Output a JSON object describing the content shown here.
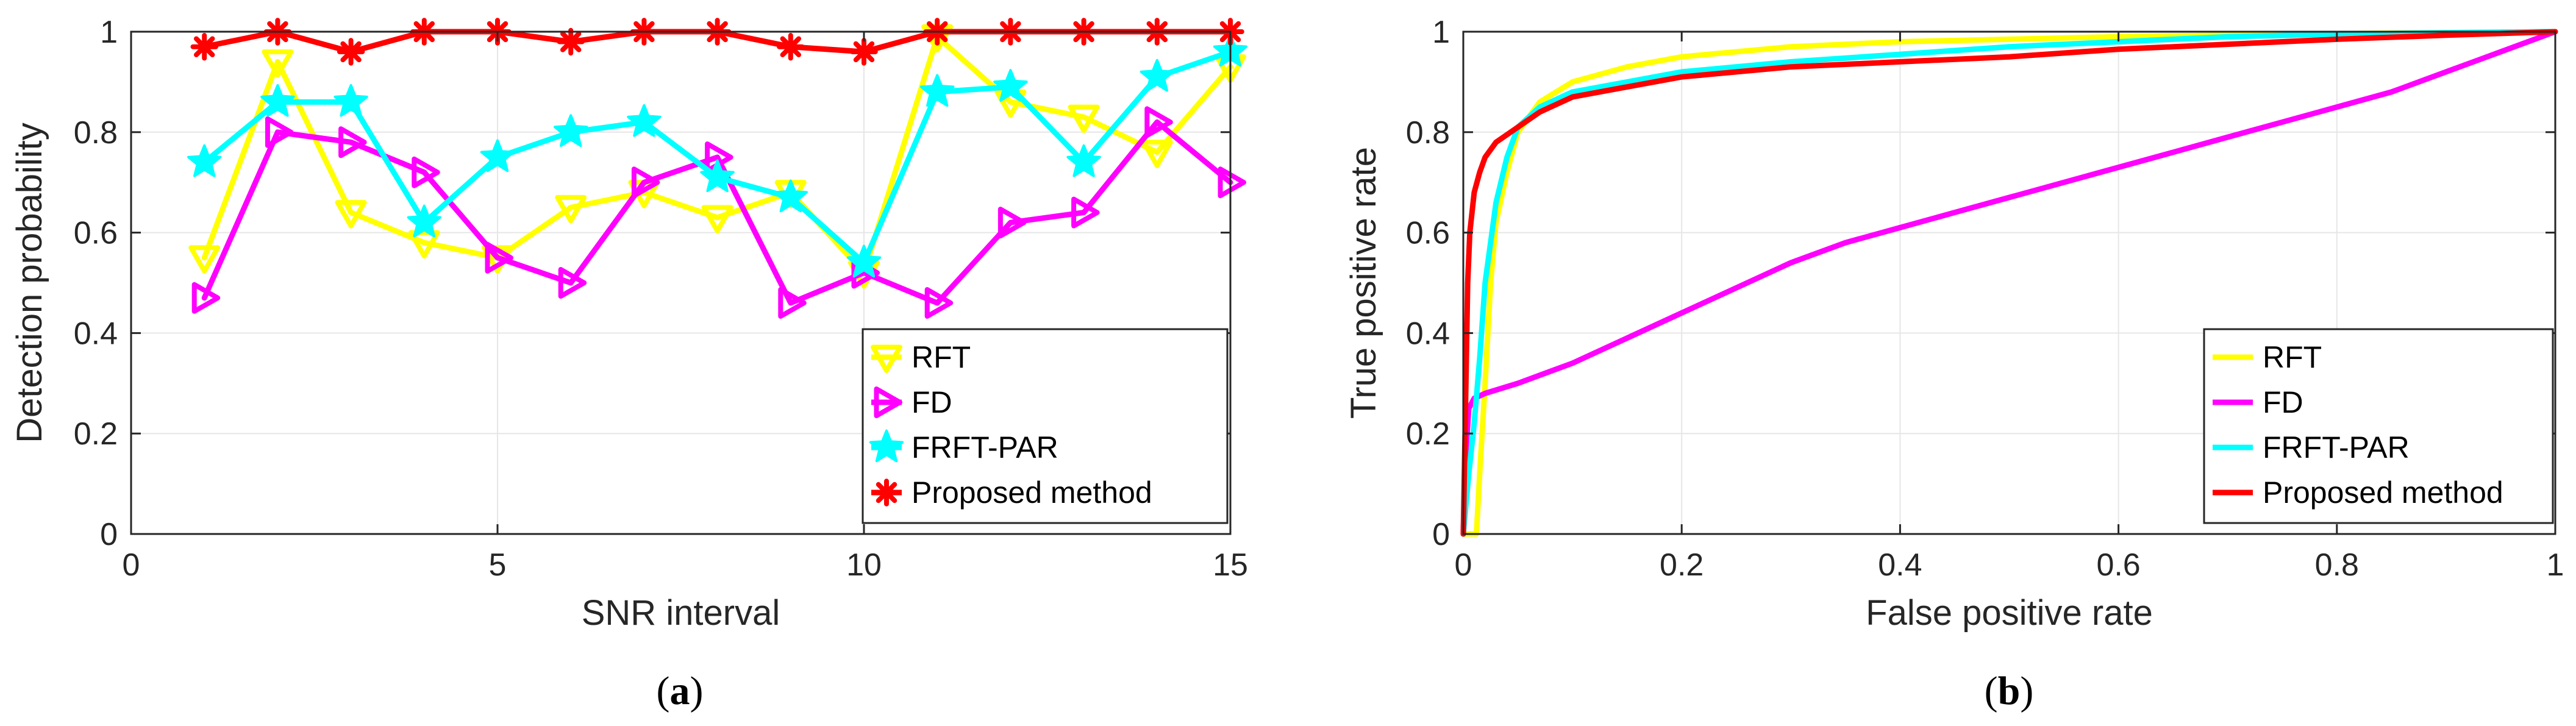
{
  "colors": {
    "rft": "#ffff00",
    "fd": "#ff00ff",
    "frft": "#00ffff",
    "proposed": "#ff0000",
    "grid": "#e6e6e6",
    "axis": "#262626"
  },
  "chart_data": [
    {
      "type": "line",
      "panel": "a",
      "caption": "a",
      "xlabel": "SNR interval",
      "ylabel": "Detection probability",
      "xlim": [
        0,
        15
      ],
      "ylim": [
        0,
        1
      ],
      "xticks": [
        0,
        5,
        10,
        15
      ],
      "yticks": [
        0,
        0.2,
        0.4,
        0.6,
        0.8,
        1
      ],
      "xtick_labels": [
        "0",
        "5",
        "10",
        "15"
      ],
      "ytick_labels": [
        "0",
        "0.2",
        "0.4",
        "0.6",
        "0.8",
        "1"
      ],
      "grid": true,
      "legend": "bottom-right",
      "x": [
        1,
        2,
        3,
        4,
        5,
        6,
        7,
        8,
        9,
        10,
        11,
        12,
        13,
        14,
        15
      ],
      "series": [
        {
          "name": "RFT",
          "color_key": "rft",
          "marker": "triangle-down",
          "values": [
            0.55,
            0.94,
            0.64,
            0.58,
            0.55,
            0.65,
            0.68,
            0.63,
            0.68,
            0.52,
            0.99,
            0.86,
            0.83,
            0.76,
            0.93
          ]
        },
        {
          "name": "FD",
          "color_key": "fd",
          "marker": "triangle-right",
          "values": [
            0.47,
            0.8,
            0.78,
            0.72,
            0.55,
            0.5,
            0.7,
            0.75,
            0.46,
            0.52,
            0.46,
            0.62,
            0.64,
            0.82,
            0.7
          ]
        },
        {
          "name": "FRFT-PAR",
          "color_key": "frft",
          "marker": "hexagram",
          "values": [
            0.74,
            0.86,
            0.86,
            0.62,
            0.75,
            0.8,
            0.82,
            0.71,
            0.67,
            0.54,
            0.88,
            0.89,
            0.74,
            0.91,
            0.96
          ]
        },
        {
          "name": "Proposed method",
          "color_key": "proposed",
          "marker": "asterisk",
          "values": [
            0.97,
            1.0,
            0.96,
            1.0,
            1.0,
            0.98,
            1.0,
            1.0,
            0.97,
            0.96,
            1.0,
            1.0,
            1.0,
            1.0,
            1.0
          ]
        }
      ]
    },
    {
      "type": "line",
      "panel": "b",
      "caption": "b",
      "xlabel": "False positive rate",
      "ylabel": "True positive rate",
      "xlim": [
        0,
        1
      ],
      "ylim": [
        0,
        1
      ],
      "xticks": [
        0,
        0.2,
        0.4,
        0.6,
        0.8,
        1
      ],
      "yticks": [
        0,
        0.2,
        0.4,
        0.6,
        0.8,
        1
      ],
      "xtick_labels": [
        "0",
        "0.2",
        "0.4",
        "0.6",
        "0.8",
        "1"
      ],
      "ytick_labels": [
        "0",
        "0.2",
        "0.4",
        "0.6",
        "0.8",
        "1"
      ],
      "grid": true,
      "legend": "bottom-right",
      "series": [
        {
          "name": "RFT",
          "color_key": "rft",
          "x": [
            0,
            0.012,
            0.015,
            0.02,
            0.025,
            0.03,
            0.04,
            0.05,
            0.07,
            0.1,
            0.15,
            0.2,
            0.3,
            0.4,
            0.5,
            0.6,
            0.7,
            0.8,
            0.9,
            1.0
          ],
          "y": [
            0,
            0,
            0.12,
            0.3,
            0.5,
            0.62,
            0.72,
            0.8,
            0.86,
            0.9,
            0.93,
            0.95,
            0.97,
            0.98,
            0.985,
            0.99,
            0.993,
            0.996,
            0.998,
            1.0
          ]
        },
        {
          "name": "FD",
          "color_key": "fd",
          "x": [
            0,
            0.002,
            0.005,
            0.01,
            0.02,
            0.05,
            0.1,
            0.15,
            0.2,
            0.25,
            0.3,
            0.35,
            0.4,
            0.45,
            0.5,
            0.55,
            0.6,
            0.65,
            0.7,
            0.75,
            0.8,
            0.85,
            0.9,
            0.95,
            1.0
          ],
          "y": [
            0,
            0.15,
            0.25,
            0.27,
            0.28,
            0.3,
            0.34,
            0.39,
            0.44,
            0.49,
            0.54,
            0.58,
            0.61,
            0.64,
            0.67,
            0.7,
            0.73,
            0.76,
            0.79,
            0.82,
            0.85,
            0.88,
            0.92,
            0.96,
            1.0
          ]
        },
        {
          "name": "FRFT-PAR",
          "color_key": "frft",
          "x": [
            0,
            0.005,
            0.01,
            0.015,
            0.02,
            0.03,
            0.04,
            0.05,
            0.07,
            0.1,
            0.15,
            0.2,
            0.3,
            0.4,
            0.5,
            0.6,
            0.7,
            0.8,
            0.9,
            1.0
          ],
          "y": [
            0,
            0.12,
            0.22,
            0.35,
            0.5,
            0.66,
            0.75,
            0.81,
            0.85,
            0.88,
            0.9,
            0.92,
            0.94,
            0.955,
            0.97,
            0.98,
            0.99,
            0.995,
            0.998,
            1.0
          ]
        },
        {
          "name": "Proposed method",
          "color_key": "proposed",
          "x": [
            0,
            0.002,
            0.004,
            0.006,
            0.01,
            0.015,
            0.02,
            0.03,
            0.05,
            0.07,
            0.1,
            0.15,
            0.2,
            0.3,
            0.4,
            0.5,
            0.6,
            0.7,
            0.8,
            0.9,
            1.0
          ],
          "y": [
            0,
            0.25,
            0.5,
            0.6,
            0.68,
            0.72,
            0.75,
            0.78,
            0.81,
            0.84,
            0.87,
            0.89,
            0.91,
            0.93,
            0.94,
            0.95,
            0.965,
            0.975,
            0.985,
            0.993,
            1.0
          ]
        }
      ]
    }
  ]
}
